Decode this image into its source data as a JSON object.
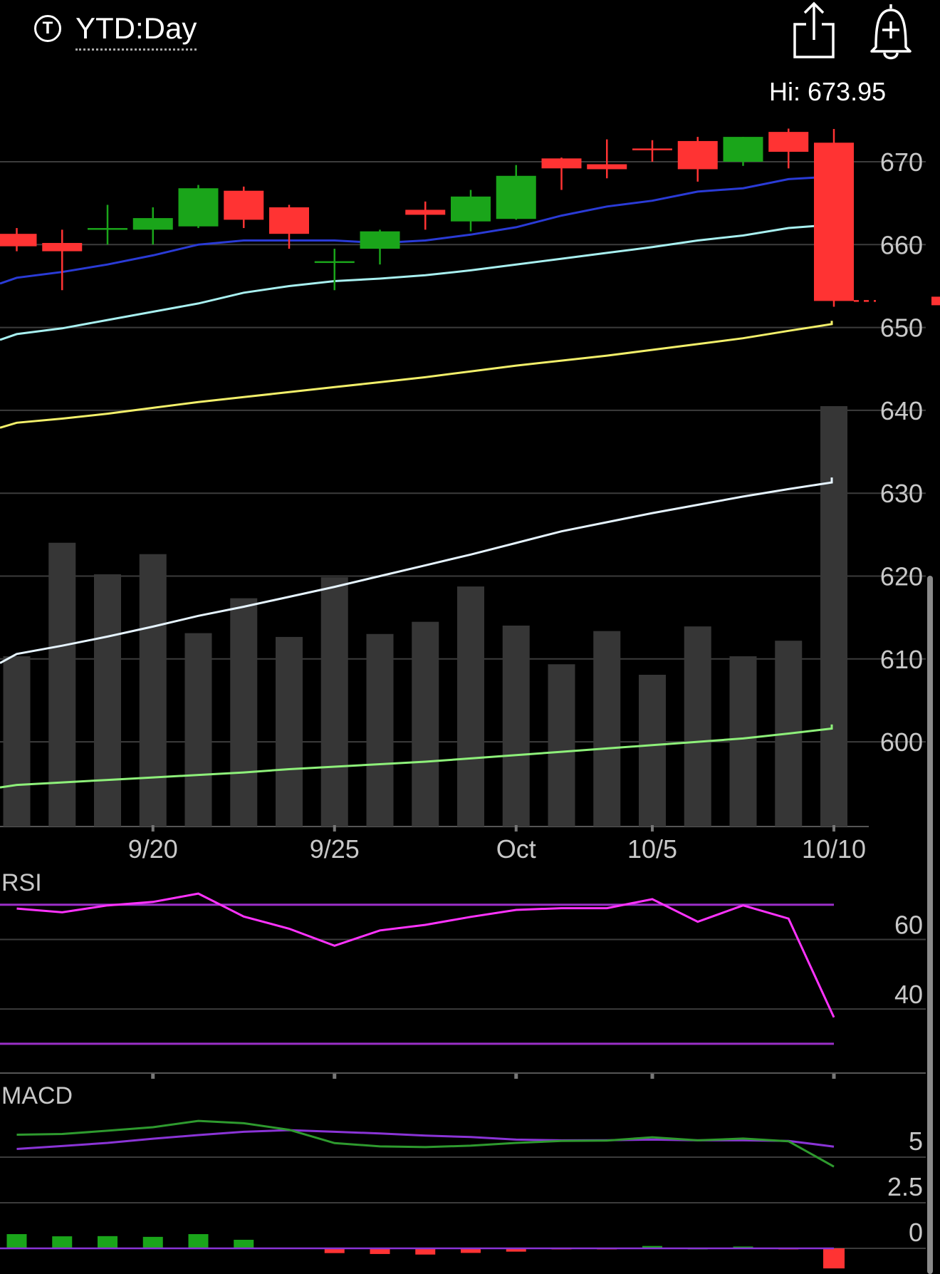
{
  "header": {
    "ticker_icon_glyph": "T",
    "period": "YTD:Day",
    "share_icon": "share-icon",
    "alert_icon": "bell-plus-icon",
    "hi_label": "Hi: 673.95"
  },
  "colors": {
    "up": "#1aa51a",
    "down": "#ff3333",
    "volume": "#363636",
    "grid": "#3c3c3c",
    "ma_blue": "#2a3bd6",
    "ma_cyan": "#a8f0f0",
    "ma_yellow": "#f2ef6a",
    "ma_white": "#e6f4ff",
    "ma_green": "#8ef07a",
    "rsi": "#ff33ff",
    "rsi_band": "#9b30c8",
    "macd": "#2e9a2e",
    "signal": "#8a34d6"
  },
  "chart_data": [
    {
      "type": "candlestick",
      "title": "",
      "x_labels": [
        {
          "index": 3,
          "label": "9/20"
        },
        {
          "index": 7,
          "label": "9/25"
        },
        {
          "index": 11,
          "label": "Oct"
        },
        {
          "index": 14,
          "label": "10/5"
        },
        {
          "index": 18,
          "label": "10/10"
        }
      ],
      "ylim": [
        587,
        680
      ],
      "yticks": [
        "600",
        "610",
        "620",
        "630",
        "640",
        "650",
        "660",
        "670"
      ],
      "grid": true,
      "candles": [
        {
          "open": 661.3,
          "high": 662.0,
          "low": 659.2,
          "close": 659.8
        },
        {
          "open": 660.2,
          "high": 661.8,
          "low": 654.5,
          "close": 659.2
        },
        {
          "open": 662.0,
          "high": 664.8,
          "low": 660.0,
          "close": 662.0
        },
        {
          "open": 661.8,
          "high": 664.5,
          "low": 660.0,
          "close": 663.2
        },
        {
          "open": 662.2,
          "high": 667.2,
          "low": 662.0,
          "close": 666.8
        },
        {
          "open": 666.5,
          "high": 667.0,
          "low": 662.0,
          "close": 663.0
        },
        {
          "open": 664.5,
          "high": 664.8,
          "low": 659.5,
          "close": 661.3
        },
        {
          "open": 658.0,
          "high": 659.5,
          "low": 654.5,
          "close": 658.0
        },
        {
          "open": 659.5,
          "high": 661.8,
          "low": 657.6,
          "close": 661.6
        },
        {
          "open": 664.2,
          "high": 665.2,
          "low": 661.8,
          "close": 663.6
        },
        {
          "open": 662.8,
          "high": 666.6,
          "low": 661.6,
          "close": 665.8
        },
        {
          "open": 663.1,
          "high": 669.6,
          "low": 663.0,
          "close": 668.3
        },
        {
          "open": 670.4,
          "high": 670.5,
          "low": 666.6,
          "close": 669.2
        },
        {
          "open": 669.7,
          "high": 672.7,
          "low": 668.0,
          "close": 669.1
        },
        {
          "open": 671.6,
          "high": 672.6,
          "low": 670.0,
          "close": 671.4
        },
        {
          "open": 672.5,
          "high": 673.0,
          "low": 667.6,
          "close": 669.1
        },
        {
          "open": 670.0,
          "high": 673.0,
          "low": 669.5,
          "close": 673.0
        },
        {
          "open": 673.6,
          "high": 674.0,
          "low": 669.2,
          "close": 671.2
        },
        {
          "open": 672.3,
          "high": 673.95,
          "low": 652.5,
          "close": 653.2
        }
      ],
      "last_close_marker": 653.2,
      "moving_averages": [
        {
          "color": "ma_blue",
          "start": -1,
          "values": [
            655.3,
            656.0,
            656.7,
            657.6,
            658.7,
            660.0,
            660.5,
            660.5,
            660.5,
            660.2,
            660.5,
            661.2,
            662.1,
            663.5,
            664.6,
            665.3,
            666.4,
            666.8,
            667.9,
            668.2,
            665.5
          ]
        },
        {
          "color": "ma_cyan",
          "start": -1,
          "values": [
            648.5,
            649.2,
            649.9,
            650.9,
            651.9,
            652.9,
            654.2,
            655.0,
            655.6,
            655.9,
            656.3,
            656.9,
            657.6,
            658.3,
            659.0,
            659.7,
            660.5,
            661.1,
            662.0,
            662.4,
            661.7
          ]
        },
        {
          "color": "ma_yellow",
          "start": -1,
          "values": [
            637.9,
            638.5,
            639.0,
            639.6,
            640.3,
            641.0,
            641.6,
            642.2,
            642.8,
            643.4,
            644.0,
            644.7,
            645.4,
            646.0,
            646.6,
            647.3,
            648.0,
            648.7,
            649.6,
            650.4,
            650.8
          ]
        },
        {
          "color": "ma_white",
          "start": -1,
          "values": [
            609.5,
            610.6,
            611.6,
            612.7,
            613.9,
            615.2,
            616.3,
            617.5,
            618.7,
            620.0,
            621.3,
            622.6,
            624.0,
            625.4,
            626.5,
            627.6,
            628.6,
            629.6,
            630.5,
            631.3,
            631.9
          ]
        },
        {
          "color": "ma_green",
          "start": -1,
          "values": [
            594.5,
            594.8,
            595.1,
            595.4,
            595.7,
            596.0,
            596.3,
            596.7,
            597.0,
            597.3,
            597.6,
            598.0,
            598.4,
            598.8,
            599.2,
            599.6,
            600.0,
            600.4,
            601.0,
            601.6,
            602.1
          ]
        }
      ],
      "volume": [
        0.405,
        0.675,
        0.6,
        0.648,
        0.46,
        0.543,
        0.451,
        0.593,
        0.458,
        0.487,
        0.571,
        0.478,
        0.386,
        0.465,
        0.361,
        0.476,
        0.405,
        0.442,
        1.0
      ]
    },
    {
      "type": "line",
      "title": "RSI",
      "yticks": [
        "60",
        "40"
      ],
      "ylim": [
        17,
        76
      ],
      "bands": [
        70,
        30
      ],
      "values": [
        68.9,
        67.8,
        69.8,
        70.8,
        73.2,
        66.6,
        63.1,
        58.2,
        62.6,
        64.2,
        66.5,
        68.5,
        69.0,
        69.0,
        71.6,
        65.1,
        69.8,
        66.0,
        37.6
      ]
    },
    {
      "type": "line",
      "title": "MACD",
      "yticks": [
        "5",
        "2.5",
        "0"
      ],
      "ylim": [
        -1.3,
        9.8
      ],
      "macd": [
        6.23,
        6.27,
        6.45,
        6.64,
        6.99,
        6.86,
        6.5,
        5.77,
        5.59,
        5.55,
        5.63,
        5.78,
        5.89,
        5.91,
        6.09,
        5.92,
        6.02,
        5.87,
        4.48
      ],
      "signal": [
        5.45,
        5.61,
        5.78,
        6.01,
        6.21,
        6.39,
        6.48,
        6.39,
        6.3,
        6.18,
        6.1,
        5.96,
        5.92,
        5.93,
        5.96,
        5.92,
        5.92,
        5.89,
        5.58
      ],
      "histogram": [
        0.78,
        0.66,
        0.67,
        0.63,
        0.78,
        0.47,
        0.02,
        -0.26,
        -0.31,
        -0.34,
        -0.25,
        -0.18,
        -0.03,
        -0.02,
        0.13,
        0.0,
        0.1,
        -0.02,
        -1.1
      ]
    }
  ]
}
